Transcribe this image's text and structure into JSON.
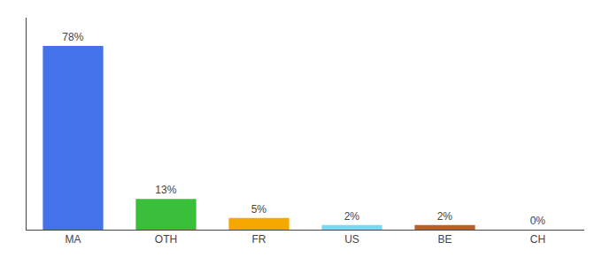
{
  "chart_data": {
    "type": "bar",
    "categories": [
      "MA",
      "OTH",
      "FR",
      "US",
      "BE",
      "CH"
    ],
    "values": [
      78,
      13,
      5,
      2,
      2,
      0
    ],
    "value_labels": [
      "78%",
      "13%",
      "5%",
      "2%",
      "2%",
      "0%"
    ],
    "colors": [
      "#4472e8",
      "#3abf3a",
      "#f5a800",
      "#7ed6f5",
      "#b8622a",
      "#cccccc"
    ],
    "ylim": [
      0,
      90
    ],
    "data_labels": true,
    "tick_labels": "x",
    "grid": false
  }
}
